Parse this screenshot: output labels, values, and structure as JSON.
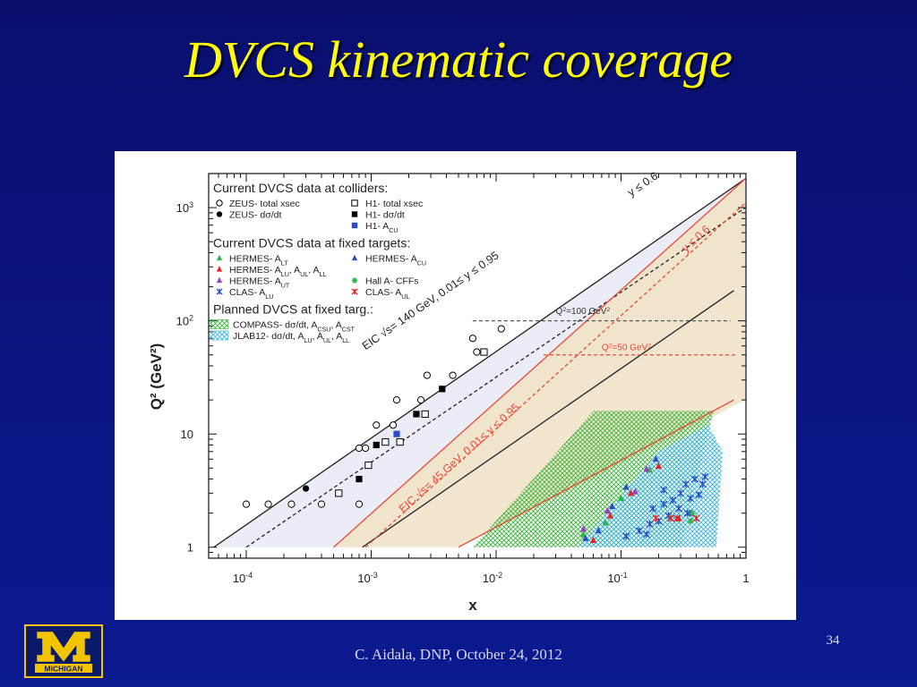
{
  "slide": {
    "title": "DVCS kinematic coverage",
    "footer": "C. Aidala, DNP, October 24, 2012",
    "slide_number": "34",
    "logo_text": "MICHIGAN"
  },
  "colors": {
    "background": "#0b1683",
    "title": "#ffff00",
    "eic140_line": "#222222",
    "eic45_line": "#e8493a",
    "compass_hatch": "#3cb43c",
    "jlab12_hatch": "#3cb4e0"
  },
  "chart_data": {
    "type": "scatter",
    "xlabel": "x",
    "ylabel": "Q² (GeV²)",
    "x_scale": "log",
    "y_scale": "log",
    "xlim": [
      5e-05,
      1
    ],
    "ylim": [
      0.8,
      2000
    ],
    "x_ticks": [
      {
        "value": 0.0001,
        "base": "10",
        "exp": "-4"
      },
      {
        "value": 0.001,
        "base": "10",
        "exp": "-3"
      },
      {
        "value": 0.01,
        "base": "10",
        "exp": "-2"
      },
      {
        "value": 0.1,
        "base": "10",
        "exp": "-1"
      },
      {
        "value": 1,
        "base": "1",
        "exp": ""
      }
    ],
    "y_ticks": [
      {
        "value": 1,
        "base": "1",
        "exp": ""
      },
      {
        "value": 10,
        "base": "10",
        "exp": ""
      },
      {
        "value": 100,
        "base": "10",
        "exp": "2"
      },
      {
        "value": 1000,
        "base": "10",
        "exp": "3"
      }
    ],
    "legend": {
      "placement": "top-left",
      "sections": [
        {
          "heading": "Current DVCS data at colliders:",
          "rows": [
            [
              {
                "marker": "open-circle",
                "color": "#000000",
                "label": "ZEUS- total xsec"
              },
              {
                "marker": "open-square",
                "color": "#000000",
                "label": "H1- total xsec"
              }
            ],
            [
              {
                "marker": "filled-circle",
                "color": "#000000",
                "label": "ZEUS- dσ/dt"
              },
              {
                "marker": "filled-square",
                "color": "#000000",
                "label": "H1- dσ/dt"
              }
            ],
            [
              null,
              {
                "marker": "filled-square",
                "color": "#2b4ec8",
                "label": "H1- A",
                "sub": "CU"
              }
            ]
          ]
        },
        {
          "heading": "Current DVCS data at fixed targets:",
          "rows": [
            [
              {
                "marker": "triangle",
                "color": "#2db44a",
                "label": "HERMES- A",
                "sub": "LT"
              },
              {
                "marker": "triangle",
                "color": "#2b4ec8",
                "label": "HERMES- A",
                "sub": "CU"
              }
            ],
            [
              {
                "marker": "triangle",
                "color": "#e02424",
                "label": "HERMES- A",
                "sub": "LU",
                "tail": ", A",
                "sub2": "UL",
                "tail2": ", A",
                "sub3": "LL"
              },
              null
            ],
            [
              {
                "marker": "triangle",
                "color": "#9b3fc1",
                "label": "HERMES- A",
                "sub": "UT"
              },
              {
                "marker": "star",
                "color": "#2db44a",
                "label": "Hall A- CFFs"
              }
            ],
            [
              {
                "marker": "cross",
                "color": "#2b4ec8",
                "label": "CLAS- A",
                "sub": "LU"
              },
              {
                "marker": "cross",
                "color": "#e02424",
                "label": "CLAS- A",
                "sub": "UL"
              }
            ]
          ]
        },
        {
          "heading": "Planned DVCS at fixed targ.:",
          "rows": [
            [
              {
                "marker": "hatch-green",
                "color": "#3cb43c",
                "label": "COMPASS- dσ/dt, A",
                "sub": "CSU",
                "tail": ", A",
                "sub2": "CST"
              }
            ],
            [
              {
                "marker": "hatch-blue",
                "color": "#3cb4e0",
                "label": "JLAB12- dσ/dt, A",
                "sub": "LU",
                "tail": ", A",
                "sub2": "UL",
                "tail2": ", A",
                "sub3": "LL"
              }
            ]
          ]
        }
      ]
    },
    "annotations": [
      {
        "text": "EIC √s= 140 GeV, 0.01≤ y ≤ 0.95",
        "x": 0.0009,
        "y": 55,
        "color": "#222222"
      },
      {
        "text": "y ≤ 0.6",
        "x": 0.12,
        "y": 1250,
        "color": "#222222"
      },
      {
        "text": "EIC √s= 45 GeV, 0.01≤ y ≤ 0.95",
        "x": 0.0018,
        "y": 2.0,
        "color": "#e8493a"
      },
      {
        "text": "y ≤ 0.6",
        "x": 0.33,
        "y": 400,
        "color": "#e8493a"
      },
      {
        "text": "Q²=100 GeV²",
        "x": 0.03,
        "y": 115,
        "color": "#333333"
      },
      {
        "text": "Q²=50 GeV²",
        "x": 0.07,
        "y": 55,
        "color": "#e8493a"
      }
    ],
    "lines": [
      {
        "name": "EIC 140 GeV y=0.95",
        "style": "solid",
        "color": "#222222",
        "points": [
          [
            5.5e-05,
            1.0
          ],
          [
            0.99,
            1800
          ]
        ]
      },
      {
        "name": "EIC 140 GeV y=0.6",
        "style": "dashed",
        "color": "#222222",
        "points": [
          [
            0.0001,
            1.0
          ],
          [
            0.99,
            1000
          ]
        ]
      },
      {
        "name": "EIC 140 GeV y=0.01",
        "style": "solid",
        "color": "#222222",
        "points": [
          [
            0.00085,
            1.0
          ],
          [
            0.8,
            185
          ]
        ]
      },
      {
        "name": "EIC 45 GeV y=0.95",
        "style": "solid",
        "color": "#e8493a",
        "points": [
          [
            0.0005,
            1.0
          ],
          [
            0.99,
            1800
          ]
        ]
      },
      {
        "name": "EIC 45 GeV y=0.6",
        "style": "dashed",
        "color": "#e8493a",
        "points": [
          [
            0.0009,
            1.0
          ],
          [
            0.99,
            1100
          ]
        ]
      },
      {
        "name": "EIC 45 GeV y=0.01",
        "style": "solid",
        "color": "#e8493a",
        "points": [
          [
            0.005,
            1.0
          ],
          [
            0.8,
            20
          ]
        ]
      },
      {
        "name": "Q2=100 GeV2",
        "style": "dashed",
        "color": "#555555",
        "points": [
          [
            0.0065,
            100
          ],
          [
            0.75,
            100
          ]
        ]
      },
      {
        "name": "Q2=50 GeV2",
        "style": "dashed",
        "color": "#e8493a",
        "points": [
          [
            0.024,
            50
          ],
          [
            0.85,
            50
          ]
        ]
      }
    ],
    "regions": [
      {
        "name": "EIC 140 GeV coverage",
        "color": "#e8eaf4",
        "polygon": [
          [
            5.5e-05,
            1.0
          ],
          [
            0.99,
            1800
          ],
          [
            0.99,
            190
          ],
          [
            0.00085,
            1.0
          ]
        ]
      },
      {
        "name": "EIC 45 GeV coverage",
        "color": "#f1e2c6",
        "polygon": [
          [
            0.0005,
            1.0
          ],
          [
            0.99,
            1800
          ],
          [
            0.99,
            20
          ],
          [
            0.005,
            1.0
          ]
        ]
      },
      {
        "name": "COMPASS",
        "hatch": "green",
        "polygon": [
          [
            0.0065,
            1.0
          ],
          [
            0.06,
            16
          ],
          [
            0.55,
            16
          ],
          [
            0.3,
            1.0
          ]
        ]
      },
      {
        "name": "JLAB12",
        "hatch": "blue",
        "polygon": [
          [
            0.045,
            1.0
          ],
          [
            0.2,
            7
          ],
          [
            0.5,
            12
          ],
          [
            0.65,
            7
          ],
          [
            0.58,
            1.0
          ]
        ]
      }
    ],
    "series": [
      {
        "name": "ZEUS- total xsec",
        "marker": "open-circle",
        "color": "#000000",
        "points": [
          [
            0.0001,
            2.4
          ],
          [
            0.00015,
            2.4
          ],
          [
            0.00023,
            2.4
          ],
          [
            0.0004,
            2.4
          ],
          [
            0.0008,
            2.4
          ],
          [
            0.0008,
            7.5
          ],
          [
            0.0009,
            7.5
          ],
          [
            0.0011,
            12
          ],
          [
            0.0015,
            12
          ],
          [
            0.0016,
            20
          ],
          [
            0.0025,
            20
          ],
          [
            0.0028,
            33
          ],
          [
            0.0045,
            33
          ],
          [
            0.0065,
            70
          ],
          [
            0.007,
            53
          ],
          [
            0.011,
            85
          ]
        ]
      },
      {
        "name": "ZEUS- dσ/dt",
        "marker": "filled-circle",
        "color": "#000000",
        "points": [
          [
            0.0003,
            3.3
          ]
        ]
      },
      {
        "name": "H1- total xsec",
        "marker": "open-square",
        "color": "#000000",
        "points": [
          [
            0.00055,
            3.0
          ],
          [
            0.00095,
            5.3
          ],
          [
            0.0013,
            8.5
          ],
          [
            0.0017,
            8.5
          ],
          [
            0.0027,
            15
          ],
          [
            0.008,
            53
          ]
        ]
      },
      {
        "name": "H1- dσ/dt",
        "marker": "filled-square",
        "color": "#000000",
        "points": [
          [
            0.0008,
            4.0
          ],
          [
            0.0011,
            8.0
          ],
          [
            0.0023,
            15
          ],
          [
            0.0037,
            25
          ]
        ]
      },
      {
        "name": "H1- A",
        "marker": "filled-square",
        "color": "#2b4ec8",
        "points": [
          [
            0.0016,
            10
          ]
        ]
      },
      {
        "name": "HERMES- A",
        "marker": "triangle",
        "color": "#2db44a",
        "points": [
          [
            0.05,
            1.3
          ],
          [
            0.075,
            1.65
          ],
          [
            0.1,
            2.7
          ],
          [
            0.17,
            4.8
          ]
        ]
      },
      {
        "name": "HERMES- A",
        "marker": "triangle",
        "color": "#e02424",
        "points": [
          [
            0.06,
            1.15
          ],
          [
            0.082,
            1.9
          ],
          [
            0.12,
            3.0
          ],
          [
            0.2,
            5.2
          ],
          [
            0.29,
            1.8
          ]
        ]
      },
      {
        "name": "HERMES- A",
        "marker": "triangle",
        "color": "#9b3fc1",
        "points": [
          [
            0.05,
            1.45
          ],
          [
            0.078,
            2.1
          ],
          [
            0.13,
            3.1
          ],
          [
            0.16,
            4.9
          ]
        ]
      },
      {
        "name": "HERMES- A",
        "marker": "triangle",
        "color": "#2b4ec8",
        "points": [
          [
            0.052,
            1.2
          ],
          [
            0.066,
            1.4
          ],
          [
            0.085,
            2.3
          ],
          [
            0.11,
            3.4
          ],
          [
            0.19,
            6.0
          ],
          [
            0.36,
            2.0
          ]
        ]
      },
      {
        "name": "Hall A- CFFs",
        "marker": "star",
        "color": "#2db44a",
        "points": [
          [
            0.36,
            1.7
          ],
          [
            0.37,
            2.0
          ]
        ]
      },
      {
        "name": "CLAS- A",
        "marker": "cross",
        "color": "#2b4ec8",
        "points": [
          [
            0.11,
            1.25
          ],
          [
            0.14,
            1.4
          ],
          [
            0.16,
            1.3
          ],
          [
            0.17,
            1.6
          ],
          [
            0.18,
            2.2
          ],
          [
            0.2,
            1.7
          ],
          [
            0.22,
            2.4
          ],
          [
            0.22,
            3.2
          ],
          [
            0.24,
            1.9
          ],
          [
            0.26,
            2.6
          ],
          [
            0.29,
            2.2
          ],
          [
            0.3,
            3.0
          ],
          [
            0.33,
            3.6
          ],
          [
            0.34,
            2.0
          ],
          [
            0.36,
            2.7
          ],
          [
            0.39,
            4.0
          ],
          [
            0.42,
            2.9
          ],
          [
            0.45,
            3.6
          ],
          [
            0.47,
            4.2
          ]
        ]
      },
      {
        "name": "CLAS- A",
        "marker": "cross",
        "color": "#e02424",
        "points": [
          [
            0.19,
            1.8
          ],
          [
            0.25,
            1.8
          ],
          [
            0.28,
            1.8
          ],
          [
            0.4,
            1.8
          ]
        ]
      }
    ]
  }
}
